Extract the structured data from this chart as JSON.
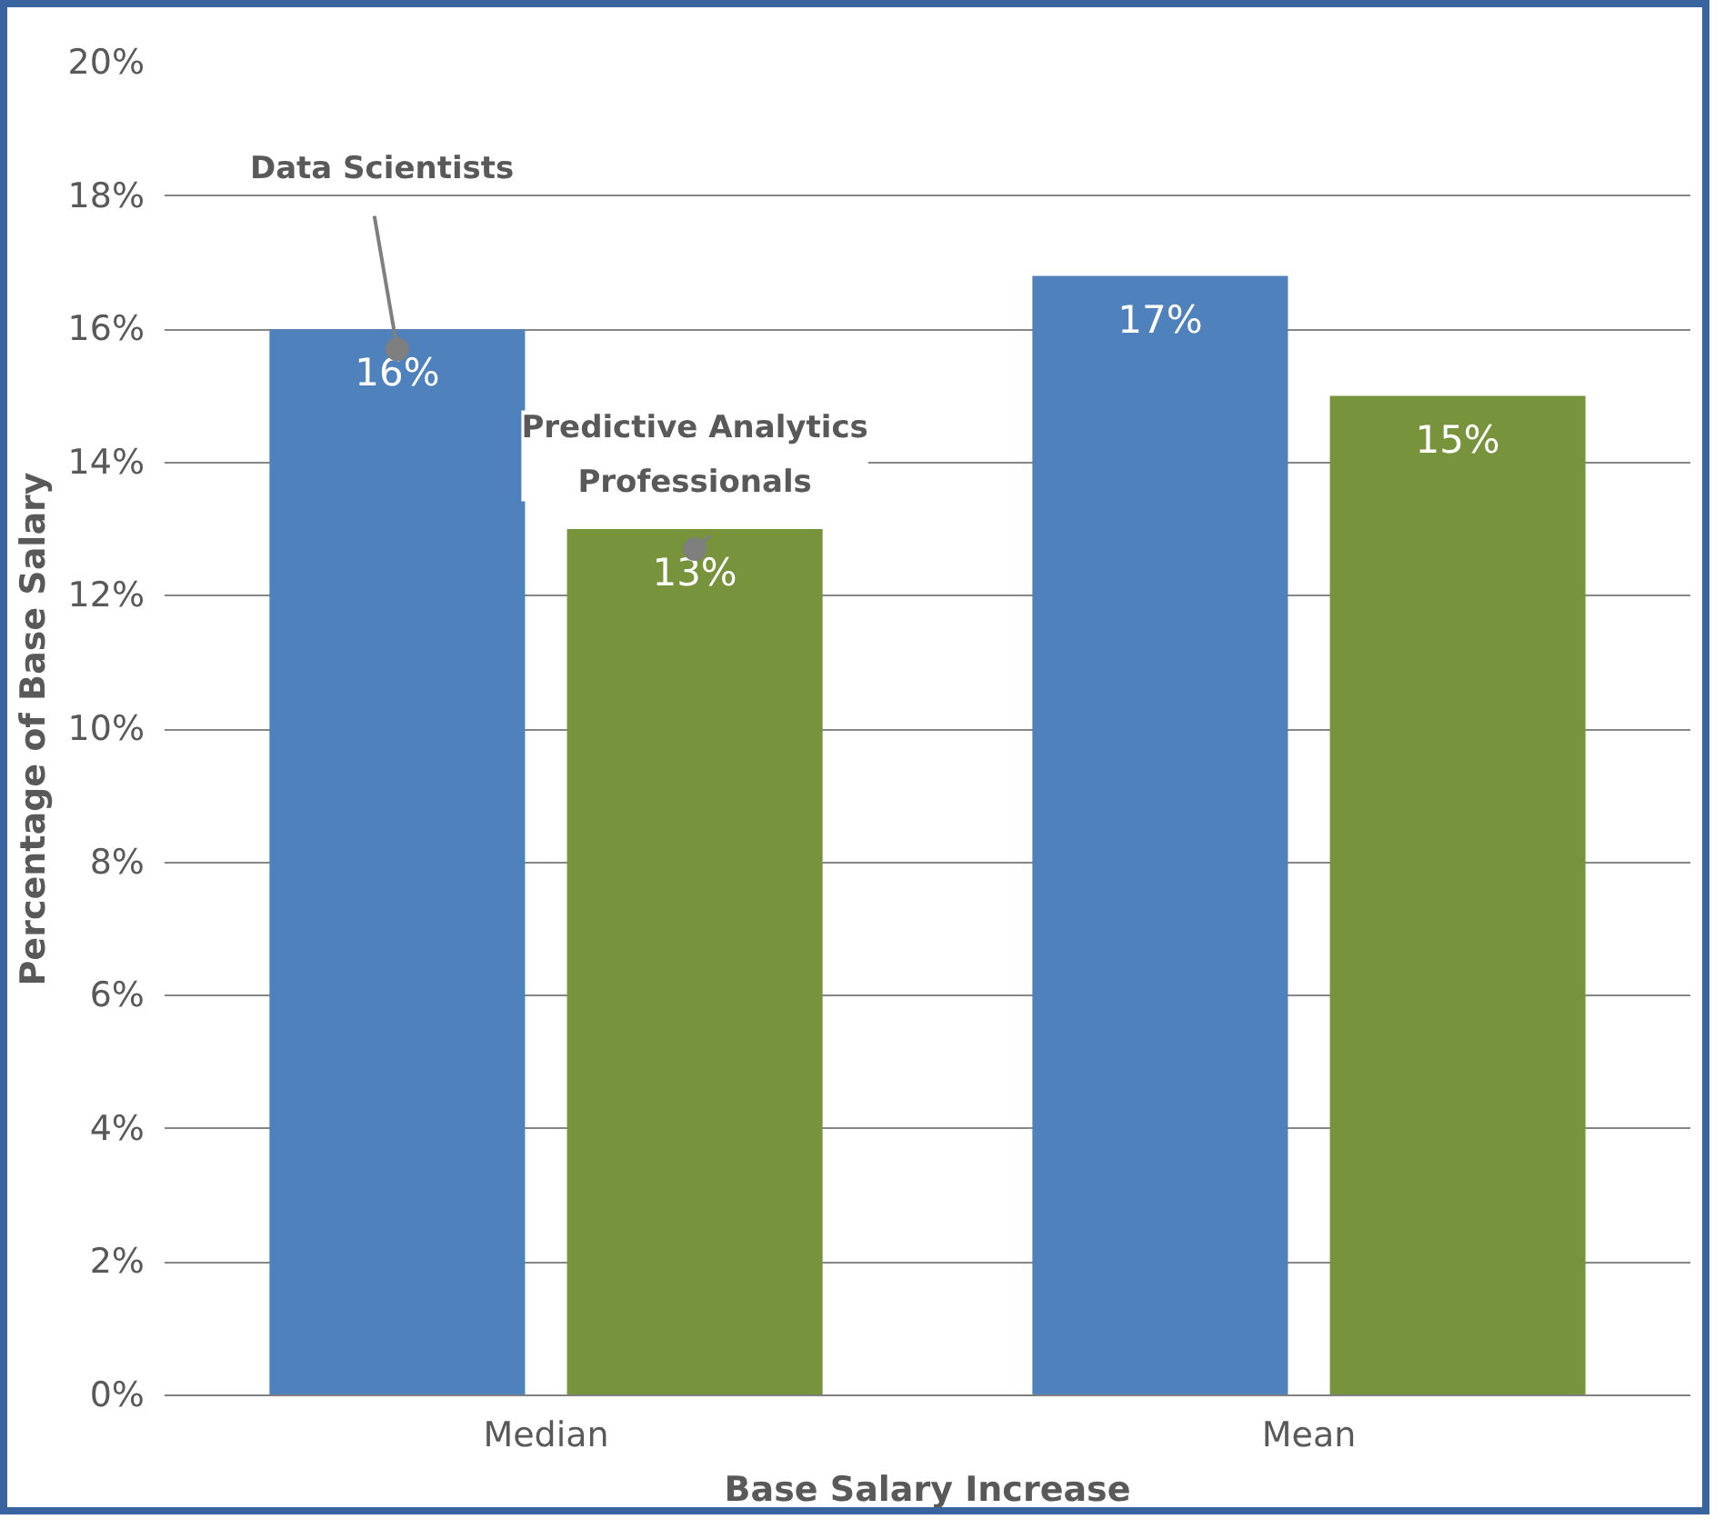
{
  "chart_data": {
    "type": "bar",
    "xlabel": "Base Salary Increase",
    "ylabel": "Percentage of Base Salary",
    "categories": [
      "Median",
      "Mean"
    ],
    "series": [
      {
        "name": "Data Scientists",
        "color": "#4f81bd",
        "values": [
          16,
          16.8
        ],
        "value_labels": [
          "16%",
          "17%"
        ]
      },
      {
        "name": "Predictive Analytics Professionals",
        "color": "#77933c",
        "values": [
          13,
          15
        ],
        "value_labels": [
          "13%",
          "15%"
        ]
      }
    ],
    "ylim": [
      0,
      20
    ],
    "yticks": [
      {
        "value": 0,
        "label": "0%"
      },
      {
        "value": 2,
        "label": "2%"
      },
      {
        "value": 4,
        "label": "4%"
      },
      {
        "value": 6,
        "label": "6%"
      },
      {
        "value": 8,
        "label": "8%"
      },
      {
        "value": 10,
        "label": "10%"
      },
      {
        "value": 12,
        "label": "12%"
      },
      {
        "value": 14,
        "label": "14%"
      },
      {
        "value": 16,
        "label": "16%"
      },
      {
        "value": 18,
        "label": "18%"
      },
      {
        "value": 20,
        "label": "20%"
      }
    ],
    "grid": "y"
  }
}
